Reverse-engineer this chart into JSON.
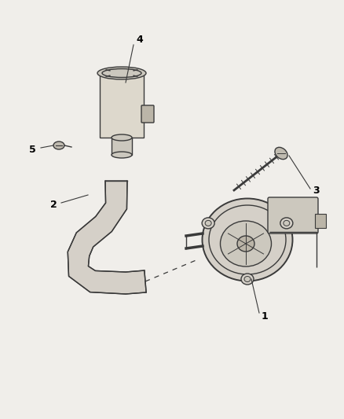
{
  "background_color": "#f0eeea",
  "line_color": "#3a3a3a",
  "label_color": "#000000",
  "figsize": [
    4.38,
    5.33
  ],
  "dpi": 100,
  "label_fontsize": 9,
  "xlim": [
    0,
    438
  ],
  "ylim": [
    0,
    533
  ]
}
